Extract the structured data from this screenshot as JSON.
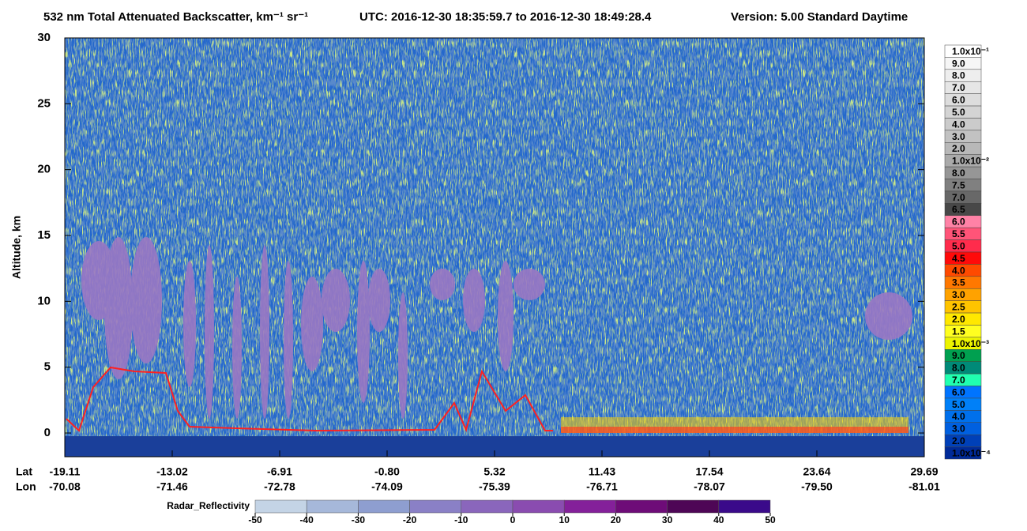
{
  "chart_data": {
    "type": "curtain",
    "title": "532 nm Total Attenuated Backscatter, km⁻¹ sr⁻¹",
    "utc": "UTC:  2016-12-30 18:35:59.7  to  2016-12-30 18:49:28.4",
    "version": "Version: 5.00  Standard  Daytime",
    "ylabel": "Altitude, km",
    "ylim": [
      -1.8,
      30
    ],
    "yticks": [
      0,
      5,
      10,
      15,
      20,
      25,
      30
    ],
    "lat_label": "Lat",
    "lon_label": "Lon",
    "lat": [
      "-19.11",
      "-13.02",
      "-6.91",
      "-0.80",
      "5.32",
      "11.43",
      "17.54",
      "23.64",
      "29.69"
    ],
    "lon": [
      "-70.08",
      "-71.46",
      "-72.78",
      "-74.09",
      "-75.39",
      "-76.71",
      "-78.07",
      "-79.50",
      "-81.01"
    ],
    "colorbar": {
      "labels": [
        "1.0x10⁻¹",
        "9.0",
        "8.0",
        "7.0",
        "6.0",
        "5.0",
        "4.0",
        "3.0",
        "2.0",
        "1.0x10⁻²",
        "8.0",
        "7.5",
        "7.0",
        "6.5",
        "6.0",
        "5.5",
        "5.0",
        "4.5",
        "4.0",
        "3.5",
        "3.0",
        "2.5",
        "2.0",
        "1.5",
        "1.0x10⁻³",
        "9.0",
        "8.0",
        "7.0",
        "6.0",
        "5.0",
        "4.0",
        "3.0",
        "2.0",
        "1.0x10⁻⁴"
      ],
      "colors": [
        "#ffffff",
        "#f6f6f6",
        "#eeeeee",
        "#e6e6e6",
        "#dddddd",
        "#d4d4d4",
        "#cbcbcb",
        "#c2c2c2",
        "#b8b8b8",
        "#aaaaaa",
        "#969696",
        "#808080",
        "#686868",
        "#484848",
        "#ff82a6",
        "#ff5478",
        "#ff2c4c",
        "#ff0a0a",
        "#ff4a00",
        "#ff7800",
        "#ffa200",
        "#ffc400",
        "#ffe800",
        "#ffff20",
        "#ecf400",
        "#00a050",
        "#008a78",
        "#20ffb0",
        "#0074ff",
        "#0080f8",
        "#0070ec",
        "#0060e0",
        "#0040b8",
        "#002a98"
      ]
    },
    "radar": {
      "label": "Radar_Reflectivity",
      "lim": [
        -50,
        50
      ],
      "ticks": [
        -50,
        -40,
        -30,
        -20,
        -10,
        0,
        10,
        20,
        30,
        40,
        50
      ],
      "colors": [
        "#c4d4e6",
        "#a6b8da",
        "#8e9ed0",
        "#8a80c6",
        "#8a66bc",
        "#8a4cb0",
        "#84209a",
        "#6e0c78",
        "#4e0656",
        "#3a0a8a"
      ]
    }
  }
}
